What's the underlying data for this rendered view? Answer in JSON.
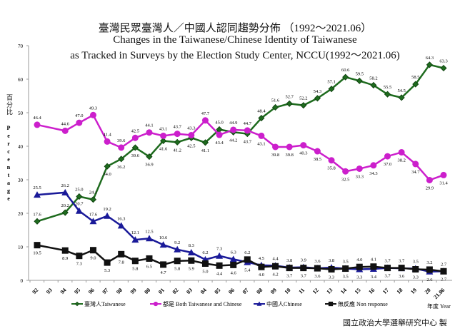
{
  "chart_data": {
    "type": "line",
    "title_zh": "臺灣民眾臺灣人／中國人認同趨勢分佈 （1992～2021.06）",
    "title_en_1": "Changes in the Taiwanese/Chinese Identity of Taiwanese",
    "title_en_2": "as Tracked in Surveys by the Election Study Center, NCCU(1992～2021.06)",
    "ylabel_zh": "百分比",
    "ylabel_en": "Percentage",
    "xlabel": "年度 Year",
    "ylim": [
      0,
      70
    ],
    "yticks": [
      0,
      10,
      20,
      30,
      40,
      50,
      60,
      70
    ],
    "grid": false,
    "legend_position": "bottom",
    "categories": [
      "92",
      "93",
      "94",
      "95",
      "96",
      "97",
      "98",
      "99",
      "00",
      "01",
      "02",
      "03",
      "04",
      "05",
      "06",
      "07",
      "08",
      "09",
      "10",
      "11",
      "12",
      "13",
      "14",
      "15",
      "16",
      "17",
      "18",
      "19",
      "20",
      "21.06"
    ],
    "series": [
      {
        "name": "臺灣人Taiwanese",
        "color": "#1e6b1e",
        "marker": "diamond",
        "values": [
          17.6,
          null,
          20.2,
          25.0,
          24.1,
          34.0,
          36.2,
          39.6,
          36.9,
          41.6,
          41.2,
          42.5,
          41.1,
          45.0,
          44.2,
          43.7,
          48.4,
          51.6,
          52.7,
          52.2,
          54.3,
          57.1,
          60.6,
          59.5,
          58.2,
          55.5,
          54.5,
          58.5,
          64.3,
          63.3
        ]
      },
      {
        "name": "都是 Both Taiwanese and Chinese",
        "color": "#cc1fcc",
        "marker": "circle",
        "values": [
          46.4,
          null,
          44.6,
          47.0,
          49.3,
          41.4,
          39.6,
          42.5,
          44.1,
          43.1,
          43.7,
          43.3,
          47.7,
          43.4,
          44.9,
          44.7,
          43.1,
          39.8,
          39.8,
          40.3,
          38.5,
          35.8,
          32.5,
          33.3,
          34.3,
          37.0,
          38.2,
          34.7,
          29.9,
          31.4
        ]
      },
      {
        "name": "中國人Chinese",
        "color": "#1a1a99",
        "marker": "triangle",
        "values": [
          25.5,
          null,
          26.2,
          20.7,
          17.6,
          19.2,
          16.3,
          12.1,
          12.5,
          10.6,
          9.2,
          8.3,
          6.2,
          7.3,
          6.3,
          5.4,
          4.5,
          4.4,
          3.8,
          3.9,
          3.6,
          3.8,
          3.5,
          3.3,
          3.4,
          3.7,
          3.6,
          3.5,
          2.6,
          2.7
        ]
      },
      {
        "name": "無反應 Non response",
        "color": "#111111",
        "marker": "square",
        "values": [
          10.5,
          null,
          8.9,
          7.3,
          9.0,
          5.3,
          7.8,
          5.8,
          6.5,
          4.7,
          5.8,
          5.9,
          5.0,
          4.4,
          4.6,
          6.2,
          4.0,
          4.2,
          3.7,
          3.7,
          3.6,
          3.3,
          3.5,
          4.0,
          4.1,
          3.7,
          3.7,
          3.3,
          3.2,
          2.7
        ]
      }
    ]
  },
  "credit": "國立政治大學選舉研究中心 製"
}
